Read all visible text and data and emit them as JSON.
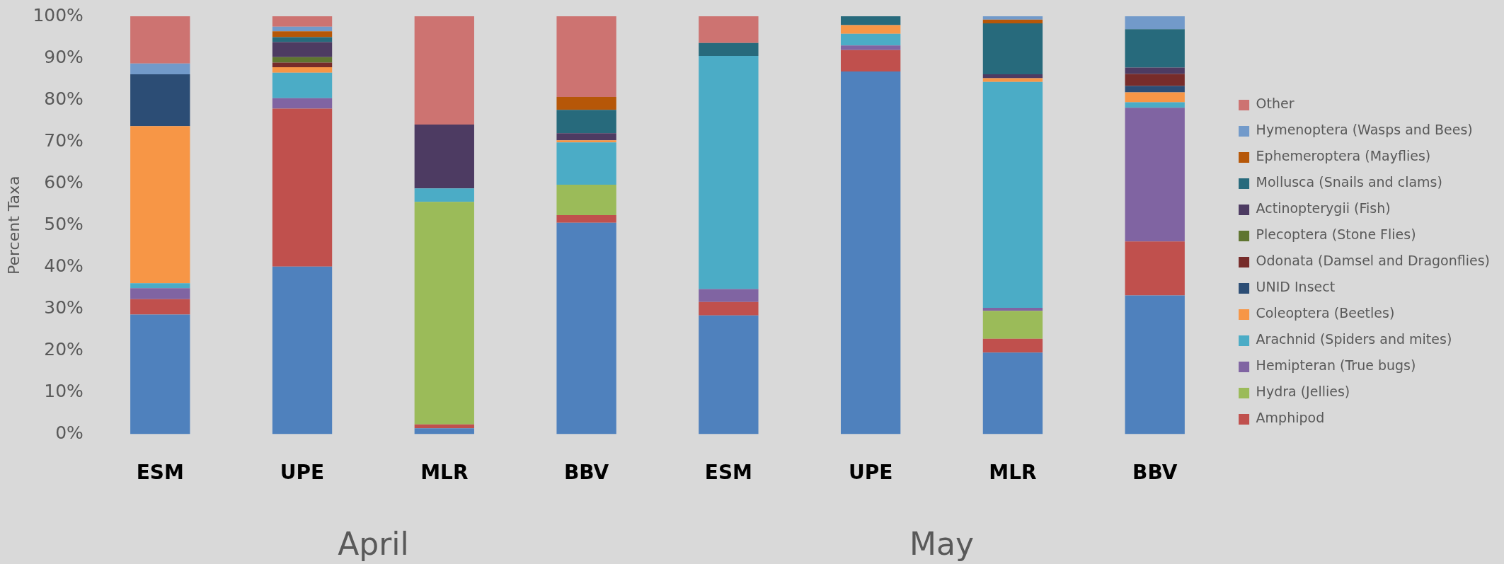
{
  "chart_data": {
    "type": "bar",
    "stacked": true,
    "ylabel": "Percent Taxa",
    "categories": [
      "ESM",
      "UPE",
      "MLR",
      "BBV",
      "ESM",
      "UPE",
      "MLR",
      "BBV"
    ],
    "annotations": [
      "April",
      "May"
    ],
    "ylim": [
      0,
      100
    ],
    "yticks": [
      {
        "value": 0,
        "label": "0%"
      },
      {
        "value": 10,
        "label": "10%"
      },
      {
        "value": 20,
        "label": "20%"
      },
      {
        "value": 30,
        "label": "30%"
      },
      {
        "value": 40,
        "label": "40%"
      },
      {
        "value": 50,
        "label": "50%"
      },
      {
        "value": 60,
        "label": "60%"
      },
      {
        "value": 70,
        "label": "70%"
      },
      {
        "value": 80,
        "label": "80%"
      },
      {
        "value": 90,
        "label": "90%"
      },
      {
        "value": 100,
        "label": "100%"
      }
    ],
    "grid": false,
    "legend": "right",
    "series": [
      {
        "color": "#4f81bd",
        "values": [
          28.6,
          40.1,
          1.4,
          50.6,
          28.4,
          86.8,
          19.5,
          33.2
        ]
      },
      {
        "name": "Amphipod",
        "color": "#c0504d",
        "values": [
          3.7,
          37.8,
          0.9,
          1.8,
          3.2,
          5.1,
          3.3,
          12.9
        ]
      },
      {
        "name": "Hydra (Jellies)",
        "color": "#9bbb59",
        "values": [
          0,
          0,
          53.3,
          7.3,
          0,
          0,
          6.7,
          0
        ]
      },
      {
        "name": "Hemipteran (True bugs)",
        "color": "#8064a2",
        "values": [
          2.6,
          2.5,
          0,
          0,
          3.1,
          1.1,
          0.7,
          32.0
        ]
      },
      {
        "name": "Arachnid (Spiders and mites)",
        "color": "#4bacc6",
        "values": [
          1.2,
          6.1,
          3.2,
          10.1,
          55.8,
          2.8,
          54.1,
          1.3
        ]
      },
      {
        "name": "Coleoptera (Beetles)",
        "color": "#f79646",
        "values": [
          37.6,
          1.3,
          0,
          0.5,
          0,
          2.1,
          0.9,
          2.4
        ]
      },
      {
        "name": "UNID Insect",
        "color": "#2c4d75",
        "values": [
          12.4,
          0,
          0,
          0,
          0,
          0,
          0,
          1.5
        ]
      },
      {
        "name": "Odonata (Damsel and Dragonflies)",
        "color": "#772c2a",
        "values": [
          0,
          1.1,
          0,
          0,
          0,
          0,
          0,
          2.9
        ]
      },
      {
        "name": "Plecoptera (Stone Flies)",
        "color": "#5f7530",
        "values": [
          0,
          1.3,
          0,
          0,
          0,
          0,
          0,
          0
        ]
      },
      {
        "name": "Actinopterygii (Fish)",
        "color": "#4d3b62",
        "values": [
          0,
          3.6,
          15.3,
          1.7,
          0,
          0,
          0.9,
          1.5
        ]
      },
      {
        "name": "Mollusca (Snails and clams)",
        "color": "#276a7c",
        "values": [
          0,
          1.2,
          0,
          5.6,
          3.1,
          2.1,
          12.2,
          9.2
        ]
      },
      {
        "name": "Ephemeroptera (Mayflies)",
        "color": "#b65708",
        "values": [
          0,
          1.4,
          0,
          3.1,
          0,
          0,
          0.9,
          0
        ]
      },
      {
        "name": "Hymenoptera (Wasps and Bees)",
        "color": "#729aca",
        "values": [
          2.6,
          1.1,
          0,
          0,
          0,
          0,
          0.8,
          3.1
        ]
      },
      {
        "name": "Other",
        "color": "#cd7371",
        "values": [
          11.3,
          2.5,
          25.9,
          19.3,
          6.4,
          0,
          0,
          0
        ]
      }
    ]
  }
}
